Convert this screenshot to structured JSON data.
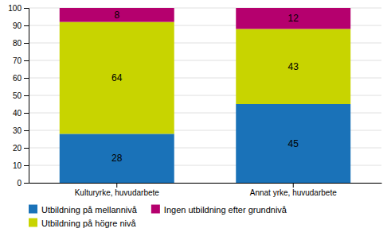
{
  "chart_data": {
    "type": "bar",
    "stacked": true,
    "categories": [
      "Kulturyrke, huvudarbete",
      "Annat yrke, huvudarbete"
    ],
    "series": [
      {
        "name": "Utbildning på mellannivå",
        "values": [
          28,
          45
        ],
        "color": "#1a72b8"
      },
      {
        "name": "Utbildning på högre nivå",
        "values": [
          64,
          43
        ],
        "color": "#c8d400"
      },
      {
        "name": "Ingen utbildning efter grundnivå",
        "values": [
          8,
          12
        ],
        "color": "#b5006e"
      }
    ],
    "ylim": [
      0,
      100
    ],
    "yticks": [
      0,
      10,
      20,
      30,
      40,
      50,
      60,
      70,
      80,
      90,
      100
    ],
    "grid": true,
    "data_labels": true,
    "legend": "bottom"
  }
}
